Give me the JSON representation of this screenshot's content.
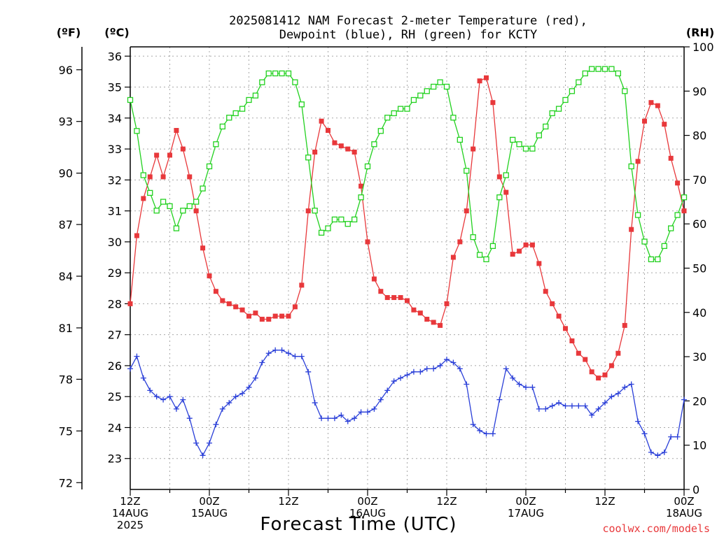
{
  "chart_data": {
    "type": "line",
    "title_line1": "2025081412 NAM Forecast 2-meter Temperature (red),",
    "title_line2": "Dewpoint (blue), RH (green) for KCTY",
    "xlabel": "Forecast Time (UTC)",
    "credit": "coolwx.com/models",
    "units": {
      "fahrenheit": "(ºF)",
      "celsius": "(ºC)",
      "rh": "(RH)"
    },
    "x_range_hours": [
      0,
      84
    ],
    "celsius_range": [
      22.0,
      36.3
    ],
    "rh_range": [
      0,
      100
    ],
    "celsius_ticks": [
      "23",
      "24",
      "25",
      "26",
      "27",
      "28",
      "29",
      "30",
      "31",
      "32",
      "33",
      "34",
      "35",
      "36"
    ],
    "fahrenheit_ticks": [
      {
        "label": "72",
        "c": 22.22
      },
      {
        "label": "75",
        "c": 23.89
      },
      {
        "label": "78",
        "c": 25.56
      },
      {
        "label": "81",
        "c": 27.22
      },
      {
        "label": "84",
        "c": 28.89
      },
      {
        "label": "87",
        "c": 30.56
      },
      {
        "label": "90",
        "c": 32.22
      },
      {
        "label": "93",
        "c": 33.89
      },
      {
        "label": "96",
        "c": 35.56
      }
    ],
    "rh_ticks": [
      "0",
      "10",
      "20",
      "30",
      "40",
      "50",
      "60",
      "70",
      "80",
      "90",
      "100"
    ],
    "x_ticks": [
      {
        "h": 0,
        "l1": "12Z",
        "l2": "14AUG",
        "l3": "2025"
      },
      {
        "h": 12,
        "l1": "00Z",
        "l2": "15AUG",
        "l3": ""
      },
      {
        "h": 24,
        "l1": "12Z",
        "l2": "",
        "l3": ""
      },
      {
        "h": 36,
        "l1": "00Z",
        "l2": "16AUG",
        "l3": ""
      },
      {
        "h": 48,
        "l1": "12Z",
        "l2": "",
        "l3": ""
      },
      {
        "h": 60,
        "l1": "00Z",
        "l2": "17AUG",
        "l3": ""
      },
      {
        "h": 72,
        "l1": "12Z",
        "l2": "",
        "l3": ""
      },
      {
        "h": 84,
        "l1": "00Z",
        "l2": "18AUG",
        "l3": ""
      }
    ],
    "series": [
      {
        "name": "Temperature",
        "color": "#e8383b",
        "marker": "filled-square",
        "points": [
          [
            0,
            28.0
          ],
          [
            1,
            30.2
          ],
          [
            2,
            31.4
          ],
          [
            3,
            32.1
          ],
          [
            4,
            32.8
          ],
          [
            5,
            32.1
          ],
          [
            6,
            32.8
          ],
          [
            7,
            33.6
          ],
          [
            8,
            33.0
          ],
          [
            9,
            32.1
          ],
          [
            10,
            31.0
          ],
          [
            11,
            29.8
          ],
          [
            12,
            28.9
          ],
          [
            13,
            28.4
          ],
          [
            14,
            28.1
          ],
          [
            15,
            28.0
          ],
          [
            16,
            27.9
          ],
          [
            17,
            27.8
          ],
          [
            18,
            27.6
          ],
          [
            19,
            27.7
          ],
          [
            20,
            27.5
          ],
          [
            21,
            27.5
          ],
          [
            22,
            27.6
          ],
          [
            23,
            27.6
          ],
          [
            24,
            27.6
          ],
          [
            25,
            27.9
          ],
          [
            26,
            28.6
          ],
          [
            27,
            31.0
          ],
          [
            28,
            32.9
          ],
          [
            29,
            33.9
          ],
          [
            30,
            33.6
          ],
          [
            31,
            33.2
          ],
          [
            32,
            33.1
          ],
          [
            33,
            33.0
          ],
          [
            34,
            32.9
          ],
          [
            35,
            31.8
          ],
          [
            36,
            30.0
          ],
          [
            37,
            28.8
          ],
          [
            38,
            28.4
          ],
          [
            39,
            28.2
          ],
          [
            40,
            28.2
          ],
          [
            41,
            28.2
          ],
          [
            42,
            28.1
          ],
          [
            43,
            27.8
          ],
          [
            44,
            27.7
          ],
          [
            45,
            27.5
          ],
          [
            46,
            27.4
          ],
          [
            47,
            27.3
          ],
          [
            48,
            28.0
          ],
          [
            49,
            29.5
          ],
          [
            50,
            30.0
          ],
          [
            51,
            31.0
          ],
          [
            52,
            33.0
          ],
          [
            53,
            35.2
          ],
          [
            54,
            35.3
          ],
          [
            55,
            34.5
          ],
          [
            56,
            32.1
          ],
          [
            57,
            31.6
          ],
          [
            58,
            29.6
          ],
          [
            59,
            29.7
          ],
          [
            60,
            29.9
          ],
          [
            61,
            29.9
          ],
          [
            62,
            29.3
          ],
          [
            63,
            28.4
          ],
          [
            64,
            28.0
          ],
          [
            65,
            27.6
          ],
          [
            66,
            27.2
          ],
          [
            67,
            26.8
          ],
          [
            68,
            26.4
          ],
          [
            69,
            26.2
          ],
          [
            70,
            25.8
          ],
          [
            71,
            25.6
          ],
          [
            72,
            25.7
          ],
          [
            73,
            26.0
          ],
          [
            74,
            26.4
          ],
          [
            75,
            27.3
          ],
          [
            76,
            30.4
          ],
          [
            77,
            32.6
          ],
          [
            78,
            33.9
          ],
          [
            79,
            34.5
          ],
          [
            80,
            34.4
          ],
          [
            81,
            33.8
          ],
          [
            82,
            32.7
          ],
          [
            83,
            31.9
          ],
          [
            84,
            31.0
          ]
        ]
      },
      {
        "name": "Dewpoint",
        "color": "#2a3fd8",
        "marker": "plus",
        "points": [
          [
            0,
            25.9
          ],
          [
            1,
            26.3
          ],
          [
            2,
            25.6
          ],
          [
            3,
            25.2
          ],
          [
            4,
            25.0
          ],
          [
            5,
            24.9
          ],
          [
            6,
            25.0
          ],
          [
            7,
            24.6
          ],
          [
            8,
            24.9
          ],
          [
            9,
            24.3
          ],
          [
            10,
            23.5
          ],
          [
            11,
            23.1
          ],
          [
            12,
            23.5
          ],
          [
            13,
            24.1
          ],
          [
            14,
            24.6
          ],
          [
            15,
            24.8
          ],
          [
            16,
            25.0
          ],
          [
            17,
            25.1
          ],
          [
            18,
            25.3
          ],
          [
            19,
            25.6
          ],
          [
            20,
            26.1
          ],
          [
            21,
            26.4
          ],
          [
            22,
            26.5
          ],
          [
            23,
            26.5
          ],
          [
            24,
            26.4
          ],
          [
            25,
            26.3
          ],
          [
            26,
            26.3
          ],
          [
            27,
            25.8
          ],
          [
            28,
            24.8
          ],
          [
            29,
            24.3
          ],
          [
            30,
            24.3
          ],
          [
            31,
            24.3
          ],
          [
            32,
            24.4
          ],
          [
            33,
            24.2
          ],
          [
            34,
            24.3
          ],
          [
            35,
            24.5
          ],
          [
            36,
            24.5
          ],
          [
            37,
            24.6
          ],
          [
            38,
            24.9
          ],
          [
            39,
            25.2
          ],
          [
            40,
            25.5
          ],
          [
            41,
            25.6
          ],
          [
            42,
            25.7
          ],
          [
            43,
            25.8
          ],
          [
            44,
            25.8
          ],
          [
            45,
            25.9
          ],
          [
            46,
            25.9
          ],
          [
            47,
            26.0
          ],
          [
            48,
            26.2
          ],
          [
            49,
            26.1
          ],
          [
            50,
            25.9
          ],
          [
            51,
            25.4
          ],
          [
            52,
            24.1
          ],
          [
            53,
            23.9
          ],
          [
            54,
            23.8
          ],
          [
            55,
            23.8
          ],
          [
            56,
            24.9
          ],
          [
            57,
            25.9
          ],
          [
            58,
            25.6
          ],
          [
            59,
            25.4
          ],
          [
            60,
            25.3
          ],
          [
            61,
            25.3
          ],
          [
            62,
            24.6
          ],
          [
            63,
            24.6
          ],
          [
            64,
            24.7
          ],
          [
            65,
            24.8
          ],
          [
            66,
            24.7
          ],
          [
            67,
            24.7
          ],
          [
            68,
            24.7
          ],
          [
            69,
            24.7
          ],
          [
            70,
            24.4
          ],
          [
            71,
            24.6
          ],
          [
            72,
            24.8
          ],
          [
            73,
            25.0
          ],
          [
            74,
            25.1
          ],
          [
            75,
            25.3
          ],
          [
            76,
            25.4
          ],
          [
            77,
            24.2
          ],
          [
            78,
            23.8
          ],
          [
            79,
            23.2
          ],
          [
            80,
            23.1
          ],
          [
            81,
            23.2
          ],
          [
            82,
            23.7
          ],
          [
            83,
            23.7
          ],
          [
            84,
            24.9
          ]
        ]
      },
      {
        "name": "RH",
        "color": "#22d11f",
        "marker": "open-square",
        "points": [
          [
            0,
            88
          ],
          [
            1,
            81
          ],
          [
            2,
            71
          ],
          [
            3,
            67
          ],
          [
            4,
            63
          ],
          [
            5,
            65
          ],
          [
            6,
            64
          ],
          [
            7,
            59
          ],
          [
            8,
            63
          ],
          [
            9,
            64
          ],
          [
            10,
            65
          ],
          [
            11,
            68
          ],
          [
            12,
            73
          ],
          [
            13,
            78
          ],
          [
            14,
            82
          ],
          [
            15,
            84
          ],
          [
            16,
            85
          ],
          [
            17,
            86
          ],
          [
            18,
            88
          ],
          [
            19,
            89
          ],
          [
            20,
            92
          ],
          [
            21,
            94
          ],
          [
            22,
            94
          ],
          [
            23,
            94
          ],
          [
            24,
            94
          ],
          [
            25,
            92
          ],
          [
            26,
            87
          ],
          [
            27,
            75
          ],
          [
            28,
            63
          ],
          [
            29,
            58
          ],
          [
            30,
            59
          ],
          [
            31,
            61
          ],
          [
            32,
            61
          ],
          [
            33,
            60
          ],
          [
            34,
            61
          ],
          [
            35,
            66
          ],
          [
            36,
            73
          ],
          [
            37,
            78
          ],
          [
            38,
            81
          ],
          [
            39,
            84
          ],
          [
            40,
            85
          ],
          [
            41,
            86
          ],
          [
            42,
            86
          ],
          [
            43,
            88
          ],
          [
            44,
            89
          ],
          [
            45,
            90
          ],
          [
            46,
            91
          ],
          [
            47,
            92
          ],
          [
            48,
            91
          ],
          [
            49,
            84
          ],
          [
            50,
            79
          ],
          [
            51,
            72
          ],
          [
            52,
            57
          ],
          [
            53,
            53
          ],
          [
            54,
            52
          ],
          [
            55,
            55
          ],
          [
            56,
            66
          ],
          [
            57,
            71
          ],
          [
            58,
            79
          ],
          [
            59,
            78
          ],
          [
            60,
            77
          ],
          [
            61,
            77
          ],
          [
            62,
            80
          ],
          [
            63,
            82
          ],
          [
            64,
            85
          ],
          [
            65,
            86
          ],
          [
            66,
            88
          ],
          [
            67,
            90
          ],
          [
            68,
            92
          ],
          [
            69,
            94
          ],
          [
            70,
            95
          ],
          [
            71,
            95
          ],
          [
            72,
            95
          ],
          [
            73,
            95
          ],
          [
            74,
            94
          ],
          [
            75,
            90
          ],
          [
            76,
            73
          ],
          [
            77,
            62
          ],
          [
            78,
            56
          ],
          [
            79,
            52
          ],
          [
            80,
            52
          ],
          [
            81,
            55
          ],
          [
            82,
            59
          ],
          [
            83,
            62
          ],
          [
            84,
            66
          ]
        ]
      }
    ]
  }
}
